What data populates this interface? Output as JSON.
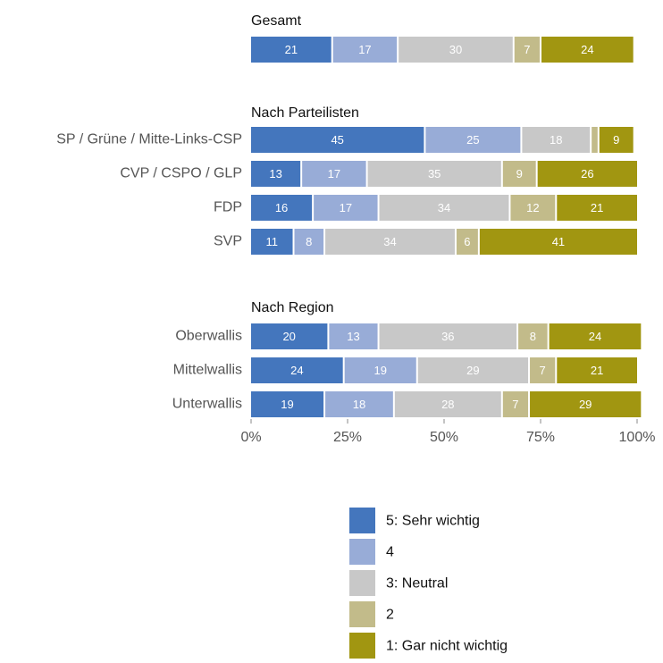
{
  "chart_data": {
    "type": "bar",
    "orientation": "horizontal",
    "stacked": true,
    "xlim": [
      0,
      100
    ],
    "x_ticks": [
      "0%",
      "25%",
      "50%",
      "75%",
      "100%"
    ],
    "series_names": [
      "5: Sehr wichtig",
      "4",
      "3: Neutral",
      "2",
      "1: Gar nicht wichtig"
    ],
    "colors": [
      "#4476bd",
      "#98acd7",
      "#c8c8c8",
      "#c2bb8a",
      "#a19611"
    ],
    "label_colors": [
      "#ffffff",
      "#ffffff",
      "#ffffff",
      "#ffffff",
      "#ffffff"
    ],
    "legend_position": "bottom",
    "groups": [
      {
        "title": "Gesamt",
        "rows": [
          {
            "label": "",
            "values": [
              21,
              17,
              30,
              7,
              24
            ]
          }
        ]
      },
      {
        "title": "Nach Parteilisten",
        "rows": [
          {
            "label": "SP / Grüne / Mitte-Links-CSP",
            "values": [
              45,
              25,
              18,
              2,
              9
            ],
            "shown_labels": [
              "45",
              "25",
              "18",
              "",
              "9"
            ]
          },
          {
            "label": "CVP / CSPO / GLP",
            "values": [
              13,
              17,
              35,
              9,
              26
            ]
          },
          {
            "label": "FDP",
            "values": [
              16,
              17,
              34,
              12,
              21
            ]
          },
          {
            "label": "SVP",
            "values": [
              11,
              8,
              34,
              6,
              41
            ]
          }
        ]
      },
      {
        "title": "Nach Region",
        "rows": [
          {
            "label": "Oberwallis",
            "values": [
              20,
              13,
              36,
              8,
              24
            ]
          },
          {
            "label": "Mittelwallis",
            "values": [
              24,
              19,
              29,
              7,
              21
            ]
          },
          {
            "label": "Unterwallis",
            "values": [
              19,
              18,
              28,
              7,
              29
            ]
          }
        ]
      }
    ]
  }
}
